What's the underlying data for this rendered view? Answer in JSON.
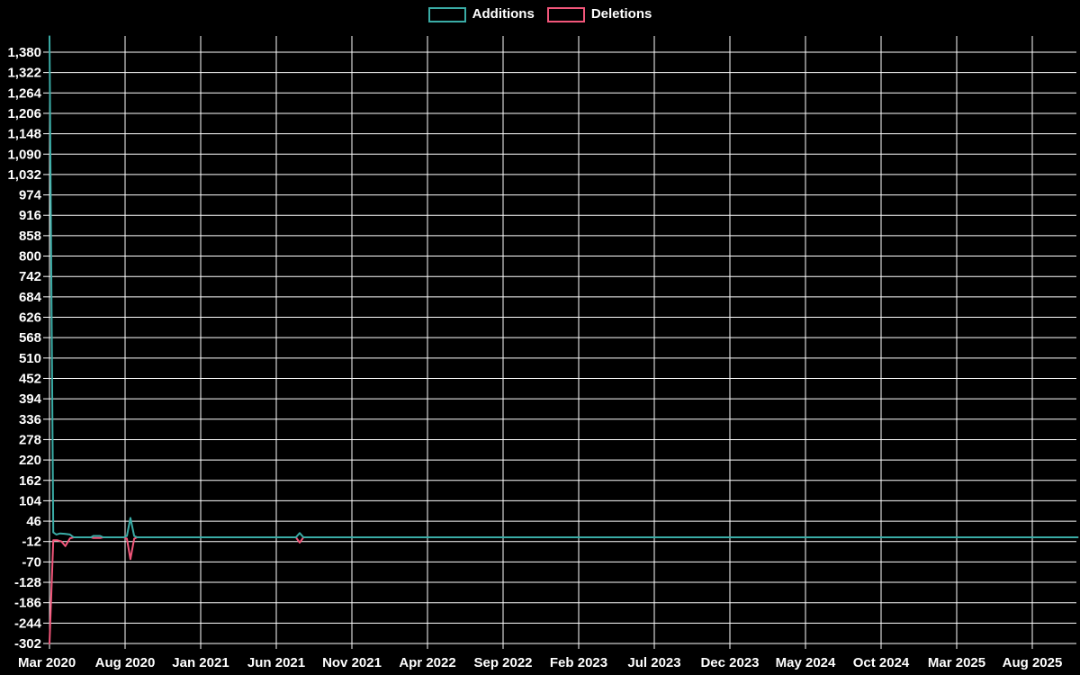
{
  "legend": {
    "items": [
      {
        "label": "Additions",
        "color": "#3AACA6"
      },
      {
        "label": "Deletions",
        "color": "#F2567A"
      }
    ]
  },
  "chart_data": {
    "type": "line",
    "title": "",
    "background_color": "#000000",
    "grid_color": "#ffffff",
    "text_color": "#ffffff",
    "grid": true,
    "legend_position": "top-center",
    "x_tick_labels": [
      "Mar 2020",
      "Aug 2020",
      "Jan 2021",
      "Jun 2021",
      "Nov 2021",
      "Apr 2022",
      "Sep 2022",
      "Feb 2023",
      "Jul 2023",
      "Dec 2023",
      "May 2024",
      "Oct 2024",
      "Mar 2025",
      "Aug 2025"
    ],
    "x_tick_interval_months": 5,
    "x_unit": "months since Mar 2020",
    "xlim_months": [
      0,
      68
    ],
    "y_ticks": [
      -302,
      -244,
      -186,
      -128,
      -70,
      -12,
      46,
      104,
      162,
      220,
      278,
      336,
      394,
      452,
      510,
      568,
      626,
      684,
      742,
      800,
      858,
      916,
      974,
      1032,
      1090,
      1148,
      1206,
      1264,
      1322,
      1380
    ],
    "ylim": [
      -302,
      1426
    ],
    "series": [
      {
        "name": "Deletions",
        "color": "#F2567A",
        "points": [
          [
            0,
            -302
          ],
          [
            0.25,
            -8
          ],
          [
            0.5,
            -8
          ],
          [
            0.8,
            -12
          ],
          [
            1.05,
            -25
          ],
          [
            1.35,
            -3
          ],
          [
            1.6,
            0
          ],
          [
            2.75,
            0
          ],
          [
            2.9,
            -2
          ],
          [
            3.35,
            -2
          ],
          [
            3.55,
            0
          ],
          [
            4.9,
            0
          ],
          [
            5.12,
            -4
          ],
          [
            5.35,
            -62
          ],
          [
            5.6,
            -4
          ],
          [
            5.8,
            0
          ],
          [
            16.3,
            0
          ],
          [
            16.55,
            -15
          ],
          [
            16.8,
            0
          ],
          [
            68,
            0
          ]
        ]
      },
      {
        "name": "Additions",
        "color": "#3AACA6",
        "points": [
          [
            0,
            1425
          ],
          [
            0.25,
            14
          ],
          [
            0.45,
            8
          ],
          [
            0.7,
            11
          ],
          [
            1.0,
            10
          ],
          [
            1.35,
            8
          ],
          [
            1.6,
            0
          ],
          [
            2.75,
            0
          ],
          [
            2.9,
            4
          ],
          [
            3.35,
            4
          ],
          [
            3.55,
            0
          ],
          [
            4.9,
            0
          ],
          [
            5.12,
            4
          ],
          [
            5.35,
            55
          ],
          [
            5.6,
            4
          ],
          [
            5.8,
            0
          ],
          [
            16.3,
            0
          ],
          [
            16.55,
            12
          ],
          [
            16.8,
            0
          ],
          [
            68,
            0
          ]
        ]
      }
    ]
  }
}
